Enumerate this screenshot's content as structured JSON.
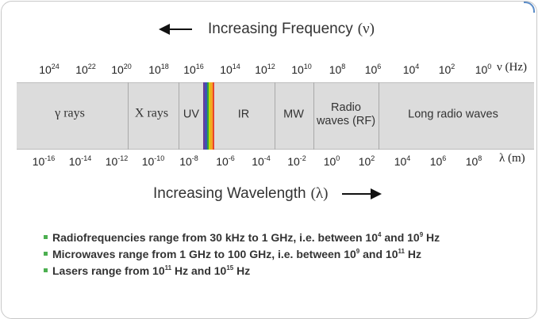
{
  "top_axis": {
    "label": "Increasing Frequency",
    "symbol": "(ν)",
    "unit": "ν (Hz)",
    "ticks": [
      {
        "base": "10",
        "exp": "24"
      },
      {
        "base": "10",
        "exp": "22"
      },
      {
        "base": "10",
        "exp": "20"
      },
      {
        "base": "10",
        "exp": "18"
      },
      {
        "base": "10",
        "exp": "16"
      },
      {
        "base": "10",
        "exp": "14"
      },
      {
        "base": "10",
        "exp": "12"
      },
      {
        "base": "10",
        "exp": "10"
      },
      {
        "base": "10",
        "exp": "8"
      },
      {
        "base": "10",
        "exp": "6"
      },
      {
        "base": "10",
        "exp": "4"
      },
      {
        "base": "10",
        "exp": "2"
      },
      {
        "base": "10",
        "exp": "0"
      }
    ]
  },
  "bottom_axis": {
    "label": "Increasing Wavelength",
    "symbol": "(λ)",
    "unit": "λ (m)",
    "ticks": [
      {
        "base": "10",
        "exp": "-16"
      },
      {
        "base": "10",
        "exp": "-14"
      },
      {
        "base": "10",
        "exp": "-12"
      },
      {
        "base": "10",
        "exp": "-10"
      },
      {
        "base": "10",
        "exp": "-8"
      },
      {
        "base": "10",
        "exp": "-6"
      },
      {
        "base": "10",
        "exp": "-4"
      },
      {
        "base": "10",
        "exp": "-2"
      },
      {
        "base": "10",
        "exp": "0"
      },
      {
        "base": "10",
        "exp": "2"
      },
      {
        "base": "10",
        "exp": "4"
      },
      {
        "base": "10",
        "exp": "6"
      },
      {
        "base": "10",
        "exp": "8"
      }
    ]
  },
  "bands": {
    "gamma": "γ rays",
    "xray": "X rays",
    "uv": "UV",
    "ir": "IR",
    "mw": "MW",
    "radio_line1": "Radio",
    "radio_line2": "waves (RF)",
    "long_radio": "Long radio waves"
  },
  "visible_colors": [
    "#6a3d9a",
    "#3f51b5",
    "#2e9e44",
    "#c8d400",
    "#f5a623",
    "#e8442e"
  ],
  "colors": {
    "bar": "#dcdcdc",
    "bullet": "#4caf50"
  },
  "bullets": [
    {
      "pre": "Radiofrequencies range from 30 kHz to 1 GHz, i.e. between 10",
      "exp1": "4",
      "mid": " and 10",
      "exp2": "9",
      "post": " Hz"
    },
    {
      "pre": "Microwaves range from 1 GHz to 100 GHz, i.e. between 10",
      "exp1": "9",
      "mid": " and 10",
      "exp2": "11",
      "post": " Hz"
    },
    {
      "pre": "Lasers range from 10",
      "exp1": "11",
      "mid": " Hz and 10",
      "exp2": "15",
      "post": " Hz"
    }
  ]
}
